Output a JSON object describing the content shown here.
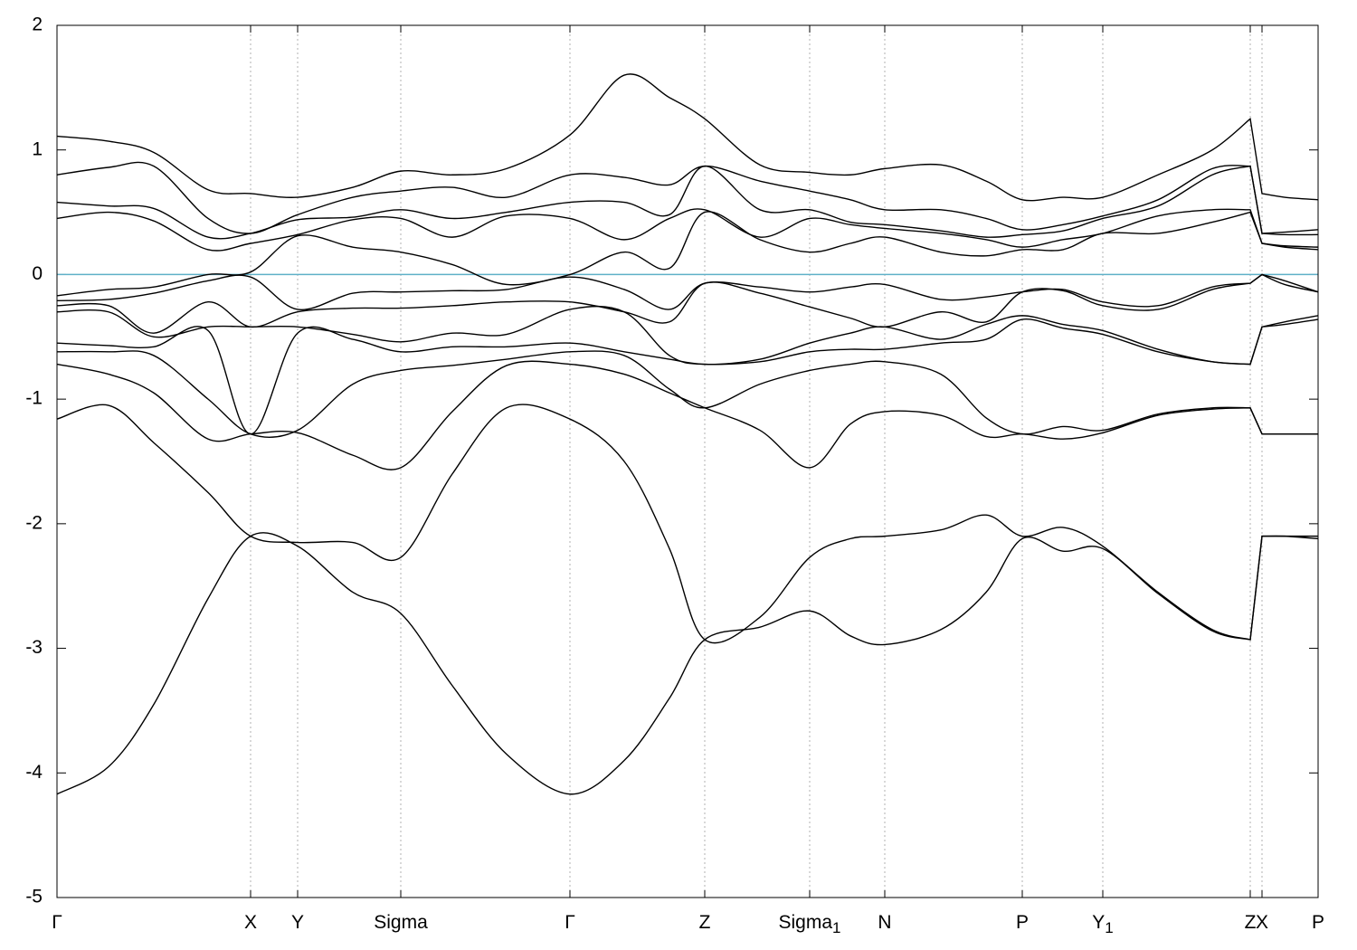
{
  "chart_data": {
    "type": "line",
    "xlim": [
      0,
      1394
    ],
    "ylim": [
      -5,
      2
    ],
    "yticks": [
      -5,
      -4,
      -3,
      -2,
      -1,
      0,
      1,
      2
    ],
    "xticks": [
      {
        "value": 0,
        "label": "Γ"
      },
      {
        "value": 214,
        "label": "X"
      },
      {
        "value": 266,
        "label": "Y"
      },
      {
        "value": 380,
        "label": "Sigma"
      },
      {
        "value": 567,
        "label": "Γ"
      },
      {
        "value": 716,
        "label": "Z"
      },
      {
        "value": 832,
        "label": "Sigma",
        "sub": "1"
      },
      {
        "value": 915,
        "label": "N"
      },
      {
        "value": 1067,
        "label": "P"
      },
      {
        "value": 1156,
        "label": "Y",
        "sub": "1"
      },
      {
        "value": 1319,
        "label": "Z"
      },
      {
        "value": 1332,
        "label": "X"
      },
      {
        "value": 1394,
        "label": "P"
      }
    ],
    "grid": true,
    "grid_color": "#b0b0b0",
    "reference_line": {
      "value": 0,
      "color": "#5fb0c8"
    },
    "x": [
      0,
      57,
      107,
      167,
      214,
      266,
      327,
      380,
      437,
      497,
      567,
      627,
      677,
      716,
      777,
      832,
      877,
      915,
      977,
      1027,
      1067,
      1112,
      1156,
      1217,
      1277,
      1319,
      1332,
      1357,
      1394
    ],
    "series": [
      {
        "color": "#000000",
        "values": [
          1.11,
          1.07,
          0.98,
          0.68,
          0.65,
          0.62,
          0.7,
          0.83,
          0.8,
          0.85,
          1.12,
          1.6,
          1.42,
          1.25,
          0.88,
          0.82,
          0.8,
          0.85,
          0.88,
          0.75,
          0.6,
          0.62,
          0.62,
          0.8,
          1.0,
          1.25,
          0.65,
          0.62,
          0.6
        ]
      },
      {
        "color": "#000000",
        "values": [
          0.8,
          0.86,
          0.87,
          0.45,
          0.33,
          0.48,
          0.62,
          0.67,
          0.7,
          0.62,
          0.8,
          0.78,
          0.72,
          0.87,
          0.75,
          0.67,
          0.6,
          0.52,
          0.52,
          0.45,
          0.36,
          0.4,
          0.47,
          0.6,
          0.85,
          0.87,
          0.33,
          0.34,
          0.36
        ]
      },
      {
        "color": "#000000",
        "values": [
          0.58,
          0.55,
          0.53,
          0.3,
          0.33,
          0.44,
          0.46,
          0.52,
          0.45,
          0.5,
          0.58,
          0.58,
          0.48,
          0.87,
          0.52,
          0.52,
          0.42,
          0.4,
          0.35,
          0.3,
          0.32,
          0.35,
          0.45,
          0.55,
          0.8,
          0.87,
          0.33,
          0.32,
          0.32
        ]
      },
      {
        "color": "#000000",
        "values": [
          0.45,
          0.5,
          0.43,
          0.2,
          0.25,
          0.32,
          0.44,
          0.45,
          0.3,
          0.47,
          0.45,
          0.28,
          0.45,
          0.52,
          0.3,
          0.45,
          0.4,
          0.37,
          0.33,
          0.28,
          0.22,
          0.28,
          0.33,
          0.47,
          0.52,
          0.52,
          0.25,
          0.23,
          0.22
        ]
      },
      {
        "color": "#000000",
        "values": [
          -0.17,
          -0.12,
          -0.1,
          0.0,
          0.02,
          0.31,
          0.22,
          0.18,
          0.08,
          -0.08,
          0.0,
          0.18,
          0.05,
          0.5,
          0.28,
          0.18,
          0.25,
          0.3,
          0.18,
          0.15,
          0.2,
          0.2,
          0.33,
          0.33,
          0.42,
          0.5,
          0.25,
          0.22,
          0.2
        ]
      },
      {
        "color": "#000000",
        "values": [
          -0.21,
          -0.2,
          -0.15,
          -0.05,
          -0.02,
          -0.28,
          -0.15,
          -0.14,
          -0.13,
          -0.12,
          -0.02,
          -0.12,
          -0.28,
          -0.07,
          -0.1,
          -0.14,
          -0.1,
          -0.08,
          -0.2,
          -0.18,
          -0.14,
          -0.12,
          -0.22,
          -0.25,
          -0.1,
          -0.07,
          0.0,
          -0.05,
          -0.14
        ]
      },
      {
        "color": "#000000",
        "values": [
          -0.25,
          -0.25,
          -0.47,
          -0.22,
          -0.42,
          -0.3,
          -0.27,
          -0.27,
          -0.25,
          -0.22,
          -0.22,
          -0.3,
          -0.38,
          -0.07,
          -0.15,
          -0.26,
          -0.35,
          -0.42,
          -0.3,
          -0.38,
          -0.14,
          -0.13,
          -0.25,
          -0.28,
          -0.12,
          -0.07,
          0.0,
          -0.08,
          -0.14
        ]
      },
      {
        "color": "#000000",
        "values": [
          -0.3,
          -0.3,
          -0.5,
          -0.42,
          -0.42,
          -0.42,
          -0.48,
          -0.54,
          -0.47,
          -0.48,
          -0.28,
          -0.3,
          -0.65,
          -0.72,
          -0.68,
          -0.55,
          -0.47,
          -0.42,
          -0.52,
          -0.4,
          -0.33,
          -0.4,
          -0.45,
          -0.6,
          -0.7,
          -0.72,
          -0.42,
          -0.38,
          -0.33
        ]
      },
      {
        "color": "#000000",
        "values": [
          -0.55,
          -0.57,
          -0.58,
          -0.45,
          -1.28,
          -0.47,
          -0.52,
          -0.62,
          -0.58,
          -0.58,
          -0.55,
          -0.62,
          -0.68,
          -0.72,
          -0.7,
          -0.62,
          -0.6,
          -0.6,
          -0.55,
          -0.52,
          -0.36,
          -0.43,
          -0.48,
          -0.62,
          -0.7,
          -0.72,
          -0.42,
          -0.4,
          -0.36
        ]
      },
      {
        "color": "#000000",
        "values": [
          -0.62,
          -0.62,
          -0.65,
          -1.0,
          -1.28,
          -1.25,
          -0.88,
          -0.77,
          -0.73,
          -0.68,
          -0.62,
          -0.65,
          -0.92,
          -1.07,
          -0.88,
          -0.77,
          -0.72,
          -0.7,
          -0.8,
          -1.15,
          -1.28,
          -1.22,
          -1.25,
          -1.12,
          -1.07,
          -1.07,
          -1.28,
          -1.28,
          -1.28
        ]
      },
      {
        "color": "#000000",
        "values": [
          -0.72,
          -0.8,
          -0.95,
          -1.32,
          -1.28,
          -1.27,
          -1.45,
          -1.55,
          -1.1,
          -0.73,
          -0.72,
          -0.8,
          -0.95,
          -1.07,
          -1.25,
          -1.55,
          -1.2,
          -1.1,
          -1.13,
          -1.3,
          -1.28,
          -1.32,
          -1.27,
          -1.13,
          -1.08,
          -1.07,
          -1.28,
          -1.28,
          -1.28
        ]
      },
      {
        "color": "#000000",
        "values": [
          -1.16,
          -1.05,
          -1.35,
          -1.75,
          -2.1,
          -2.15,
          -2.15,
          -2.27,
          -1.6,
          -1.07,
          -1.16,
          -1.5,
          -2.2,
          -2.93,
          -2.75,
          -2.27,
          -2.12,
          -2.1,
          -2.05,
          -1.93,
          -2.1,
          -2.03,
          -2.18,
          -2.55,
          -2.85,
          -2.93,
          -2.1,
          -2.1,
          -2.1
        ]
      },
      {
        "color": "#000000",
        "values": [
          -4.17,
          -3.95,
          -3.45,
          -2.6,
          -2.1,
          -2.18,
          -2.55,
          -2.72,
          -3.3,
          -3.85,
          -4.17,
          -3.9,
          -3.4,
          -2.93,
          -2.83,
          -2.7,
          -2.9,
          -2.97,
          -2.85,
          -2.55,
          -2.12,
          -2.22,
          -2.2,
          -2.56,
          -2.86,
          -2.93,
          -2.1,
          -2.1,
          -2.12
        ]
      }
    ]
  }
}
